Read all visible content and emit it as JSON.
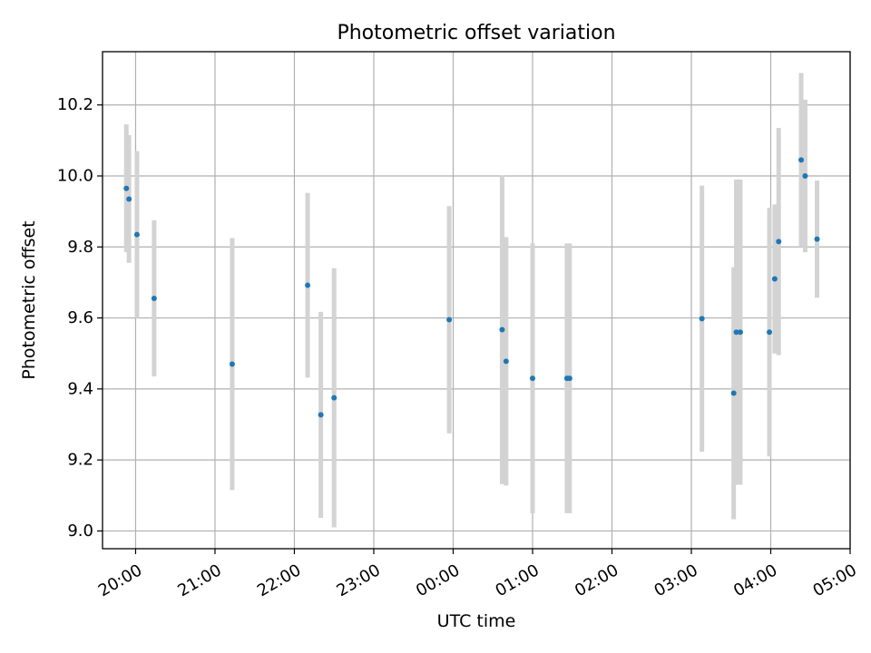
{
  "chart_data": {
    "type": "scatter",
    "title": "Photometric offset variation",
    "xlabel": "UTC time",
    "ylabel": "Photometric offset",
    "x_ticks": [
      "20:00",
      "21:00",
      "22:00",
      "23:00",
      "00:00",
      "01:00",
      "02:00",
      "03:00",
      "04:00",
      "05:00"
    ],
    "y_ticks": [
      "9.0",
      "9.2",
      "9.4",
      "9.6",
      "9.8",
      "10.0",
      "10.2"
    ],
    "xlim": [
      "19:35",
      "05:00"
    ],
    "ylim": [
      8.95,
      10.35
    ],
    "grid": true,
    "colors": {
      "marker": "#1f77b4",
      "errorbar": "#d3d3d3",
      "grid": "#b0b0b0"
    },
    "points": [
      {
        "x": "19:53",
        "y": 9.965,
        "err": 0.18
      },
      {
        "x": "19:55",
        "y": 9.935,
        "err": 0.18
      },
      {
        "x": "20:01",
        "y": 9.835,
        "err": 0.235
      },
      {
        "x": "20:14",
        "y": 9.655,
        "err": 0.22
      },
      {
        "x": "21:13",
        "y": 9.47,
        "err": 0.355
      },
      {
        "x": "22:10",
        "y": 9.692,
        "err": 0.26
      },
      {
        "x": "22:20",
        "y": 9.327,
        "err": 0.29
      },
      {
        "x": "22:30",
        "y": 9.375,
        "err": 0.365
      },
      {
        "x": "23:57",
        "y": 9.595,
        "err": 0.32
      },
      {
        "x": "00:37",
        "y": 9.567,
        "err": 0.435
      },
      {
        "x": "00:40",
        "y": 9.478,
        "err": 0.35
      },
      {
        "x": "01:00",
        "y": 9.43,
        "err": 0.38
      },
      {
        "x": "01:26",
        "y": 9.43,
        "err": 0.38
      },
      {
        "x": "01:28",
        "y": 9.43,
        "err": 0.38
      },
      {
        "x": "03:08",
        "y": 9.598,
        "err": 0.375
      },
      {
        "x": "03:32",
        "y": 9.388,
        "err": 0.355
      },
      {
        "x": "03:34",
        "y": 9.56,
        "err": 0.43
      },
      {
        "x": "03:37",
        "y": 9.56,
        "err": 0.43
      },
      {
        "x": "03:59",
        "y": 9.56,
        "err": 0.35
      },
      {
        "x": "04:03",
        "y": 9.71,
        "err": 0.21
      },
      {
        "x": "04:06",
        "y": 9.815,
        "err": 0.32
      },
      {
        "x": "04:23",
        "y": 10.045,
        "err": 0.245
      },
      {
        "x": "04:26",
        "y": 10.0,
        "err": 0.215
      },
      {
        "x": "04:35",
        "y": 9.822,
        "err": 0.165
      }
    ]
  }
}
